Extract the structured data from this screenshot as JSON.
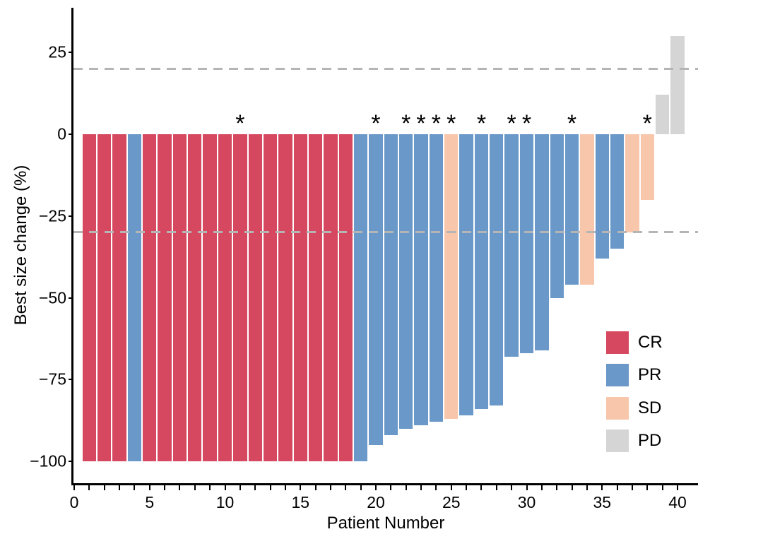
{
  "figure": {
    "background": "#ffffff",
    "x_axis_title": "Patient Number",
    "y_axis_title": "Best size change (%)"
  },
  "legend": {
    "position": "inside-lower-right",
    "items": [
      {
        "label": "CR",
        "color": "#d6485f"
      },
      {
        "label": "PR",
        "color": "#6a98c8"
      },
      {
        "label": "SD",
        "color": "#f8c7ab"
      },
      {
        "label": "PD",
        "color": "#d5d5d5"
      }
    ]
  },
  "chart_data": {
    "type": "bar",
    "subtype": "waterfall-best-response",
    "title": "",
    "xlabel": "Patient Number",
    "ylabel": "Best size change (%)",
    "xlim": [
      0,
      41
    ],
    "ylim": [
      -107,
      38
    ],
    "x_ticks": [
      0,
      5,
      10,
      15,
      20,
      25,
      30,
      35,
      40
    ],
    "x_minor_tick_every": 1,
    "y_ticks": [
      {
        "value": 25,
        "label": "25"
      },
      {
        "value": 0,
        "label": "0"
      },
      {
        "value": -25,
        "label": "−25"
      },
      {
        "value": -50,
        "label": "−50"
      },
      {
        "value": -75,
        "label": "−75"
      },
      {
        "value": -100,
        "label": "−100"
      }
    ],
    "grid": false,
    "reference_lines": [
      {
        "y": 20,
        "style": "dashed",
        "color": "#b5b5b5"
      },
      {
        "y": -30,
        "style": "dashed",
        "color": "#b5b5b5"
      }
    ],
    "response_colors": {
      "CR": "#d6485f",
      "PR": "#6a98c8",
      "SD": "#f8c7ab",
      "PD": "#d5d5d5"
    },
    "annotation_symbol": "*",
    "annotated_patients": [
      11,
      20,
      22,
      23,
      24,
      25,
      27,
      29,
      30,
      33,
      38
    ],
    "patients": [
      {
        "patient": 1,
        "change": -100,
        "response": "CR"
      },
      {
        "patient": 2,
        "change": -100,
        "response": "CR"
      },
      {
        "patient": 3,
        "change": -100,
        "response": "CR"
      },
      {
        "patient": 4,
        "change": -100,
        "response": "PR"
      },
      {
        "patient": 5,
        "change": -100,
        "response": "CR"
      },
      {
        "patient": 6,
        "change": -100,
        "response": "CR"
      },
      {
        "patient": 7,
        "change": -100,
        "response": "CR"
      },
      {
        "patient": 8,
        "change": -100,
        "response": "CR"
      },
      {
        "patient": 9,
        "change": -100,
        "response": "CR"
      },
      {
        "patient": 10,
        "change": -100,
        "response": "CR"
      },
      {
        "patient": 11,
        "change": -100,
        "response": "CR"
      },
      {
        "patient": 12,
        "change": -100,
        "response": "CR"
      },
      {
        "patient": 13,
        "change": -100,
        "response": "CR"
      },
      {
        "patient": 14,
        "change": -100,
        "response": "CR"
      },
      {
        "patient": 15,
        "change": -100,
        "response": "CR"
      },
      {
        "patient": 16,
        "change": -100,
        "response": "CR"
      },
      {
        "patient": 17,
        "change": -100,
        "response": "CR"
      },
      {
        "patient": 18,
        "change": -100,
        "response": "CR"
      },
      {
        "patient": 19,
        "change": -100,
        "response": "PR"
      },
      {
        "patient": 20,
        "change": -95,
        "response": "PR"
      },
      {
        "patient": 21,
        "change": -92,
        "response": "PR"
      },
      {
        "patient": 22,
        "change": -90,
        "response": "PR"
      },
      {
        "patient": 23,
        "change": -89,
        "response": "PR"
      },
      {
        "patient": 24,
        "change": -88,
        "response": "PR"
      },
      {
        "patient": 25,
        "change": -87,
        "response": "SD"
      },
      {
        "patient": 26,
        "change": -86,
        "response": "PR"
      },
      {
        "patient": 27,
        "change": -84,
        "response": "PR"
      },
      {
        "patient": 28,
        "change": -83,
        "response": "PR"
      },
      {
        "patient": 29,
        "change": -68,
        "response": "PR"
      },
      {
        "patient": 30,
        "change": -67,
        "response": "PR"
      },
      {
        "patient": 31,
        "change": -66,
        "response": "PR"
      },
      {
        "patient": 32,
        "change": -50,
        "response": "PR"
      },
      {
        "patient": 33,
        "change": -46,
        "response": "PR"
      },
      {
        "patient": 34,
        "change": -46,
        "response": "SD"
      },
      {
        "patient": 35,
        "change": -38,
        "response": "PR"
      },
      {
        "patient": 36,
        "change": -35,
        "response": "PR"
      },
      {
        "patient": 37,
        "change": -30,
        "response": "SD"
      },
      {
        "patient": 38,
        "change": -20,
        "response": "SD"
      },
      {
        "patient": 39,
        "change": 12,
        "response": "PD"
      },
      {
        "patient": 40,
        "change": 30,
        "response": "PD"
      }
    ]
  }
}
